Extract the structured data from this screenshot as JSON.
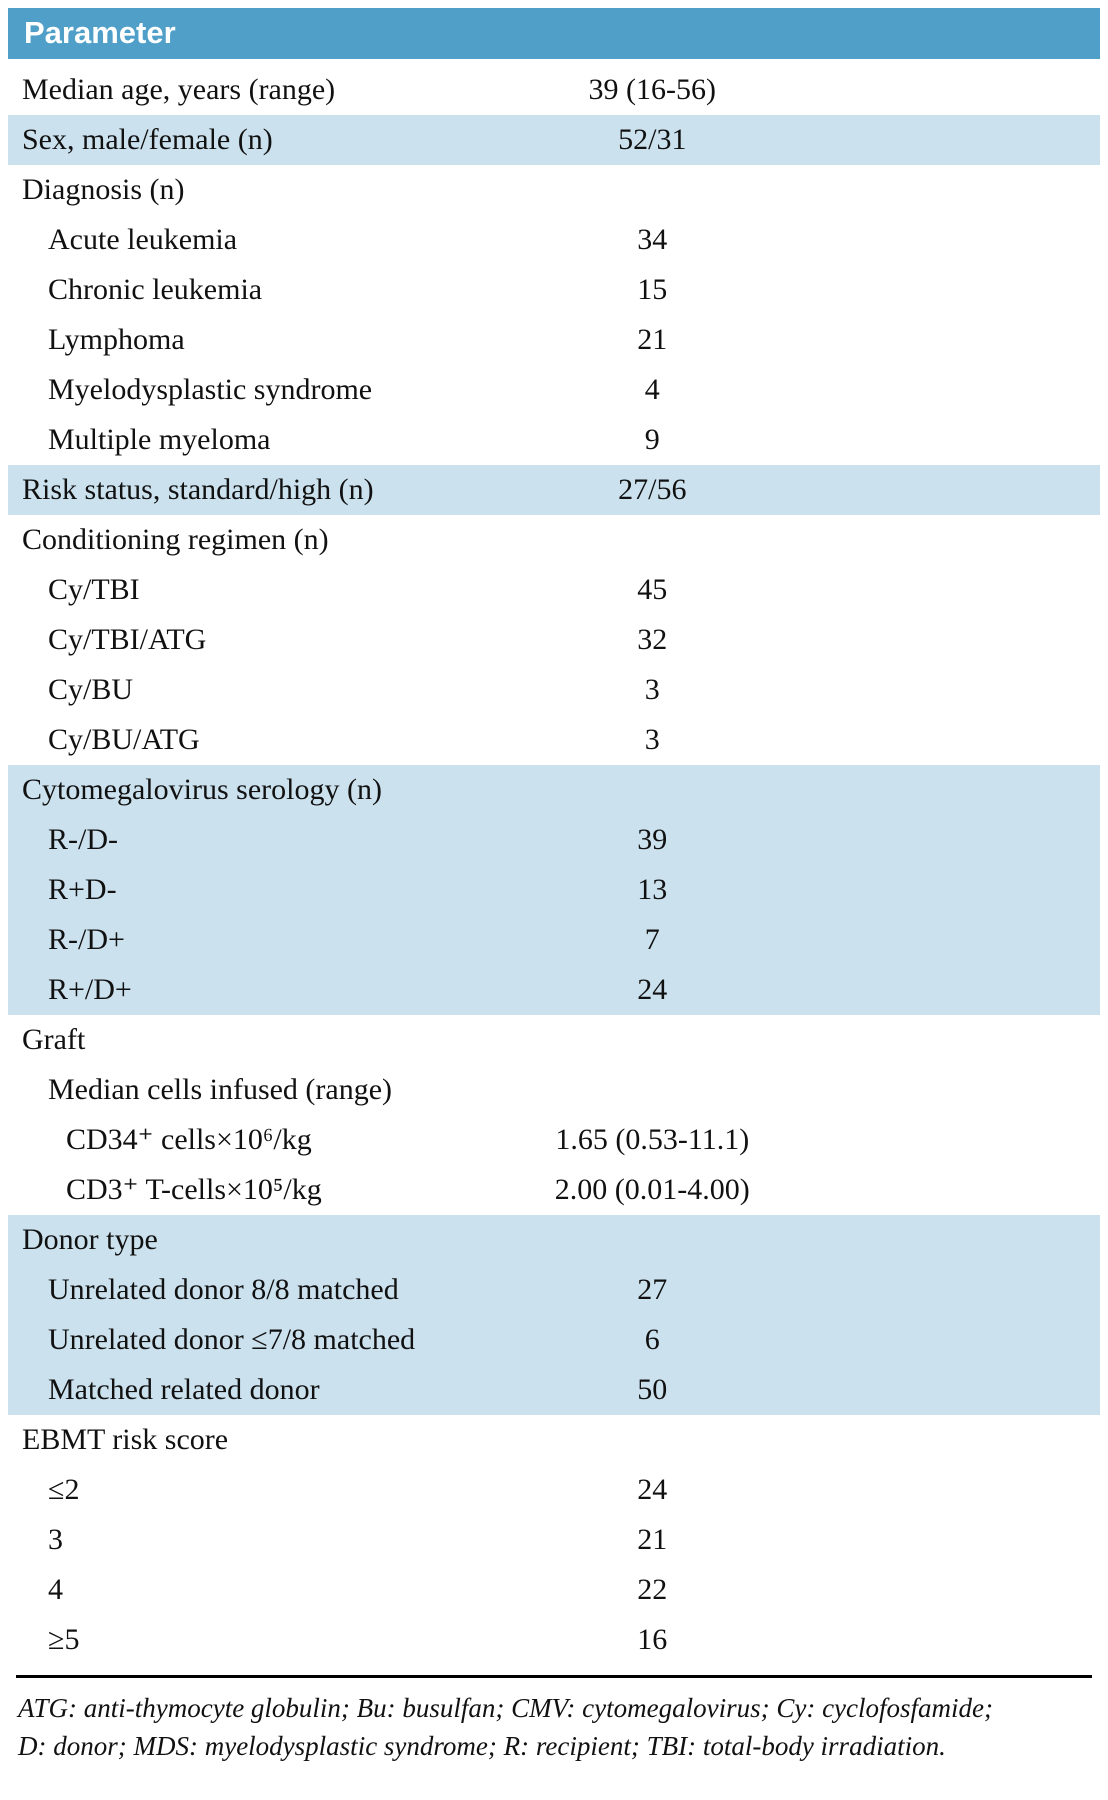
{
  "colors": {
    "header_bg": "#4f9fc8",
    "row_shade": "#cbe1ee",
    "rule_color": "#000000"
  },
  "header": {
    "title": "Parameter"
  },
  "rows": [
    {
      "label": "Median age, years (range)",
      "value": "39 (16-56)"
    },
    {
      "label": "Sex, male/female (n)",
      "value": "52/31"
    },
    {
      "label": "Diagnosis (n)",
      "value": ""
    },
    {
      "label": "Acute leukemia",
      "value": "34"
    },
    {
      "label": "Chronic leukemia",
      "value": "15"
    },
    {
      "label": "Lymphoma",
      "value": "21"
    },
    {
      "label": "Myelodysplastic syndrome",
      "value": "4"
    },
    {
      "label": "Multiple myeloma",
      "value": "9"
    },
    {
      "label": "Risk status, standard/high (n)",
      "value": "27/56"
    },
    {
      "label": "Conditioning regimen (n)",
      "value": ""
    },
    {
      "label": "Cy/TBI",
      "value": "45"
    },
    {
      "label": "Cy/TBI/ATG",
      "value": "32"
    },
    {
      "label": "Cy/BU",
      "value": "3"
    },
    {
      "label": "Cy/BU/ATG",
      "value": "3"
    },
    {
      "label": "Cytomegalovirus serology (n)",
      "value": ""
    },
    {
      "label": "R-/D-",
      "value": "39"
    },
    {
      "label": "R+D-",
      "value": "13"
    },
    {
      "label": "R-/D+",
      "value": "7"
    },
    {
      "label": "R+/D+",
      "value": "24"
    },
    {
      "label": "Graft",
      "value": ""
    },
    {
      "label": "Median cells infused (range)",
      "value": ""
    },
    {
      "label": "CD34⁺ cells×10⁶/kg",
      "value": "1.65 (0.53-11.1)"
    },
    {
      "label": "CD3⁺ T-cells×10⁵/kg",
      "value": "2.00 (0.01-4.00)"
    },
    {
      "label": "Donor type",
      "value": ""
    },
    {
      "label": "Unrelated donor 8/8 matched",
      "value": "27"
    },
    {
      "label": "Unrelated donor ≤7/8 matched",
      "value": "6"
    },
    {
      "label": "Matched related donor",
      "value": "50"
    },
    {
      "label": "EBMT risk score",
      "value": ""
    },
    {
      "label": "≤2",
      "value": "24"
    },
    {
      "label": "3",
      "value": "21"
    },
    {
      "label": "4",
      "value": "22"
    },
    {
      "label": "≥5",
      "value": "16"
    }
  ],
  "footnote": {
    "line1": "ATG: anti-thymocyte globulin; Bu: busulfan;  CMV: cytomegalovirus; Cy: cyclofosfamide;",
    "line2": "D: donor; MDS: myelodysplastic syndrome; R: recipient; TBI: total-body irradiation."
  }
}
